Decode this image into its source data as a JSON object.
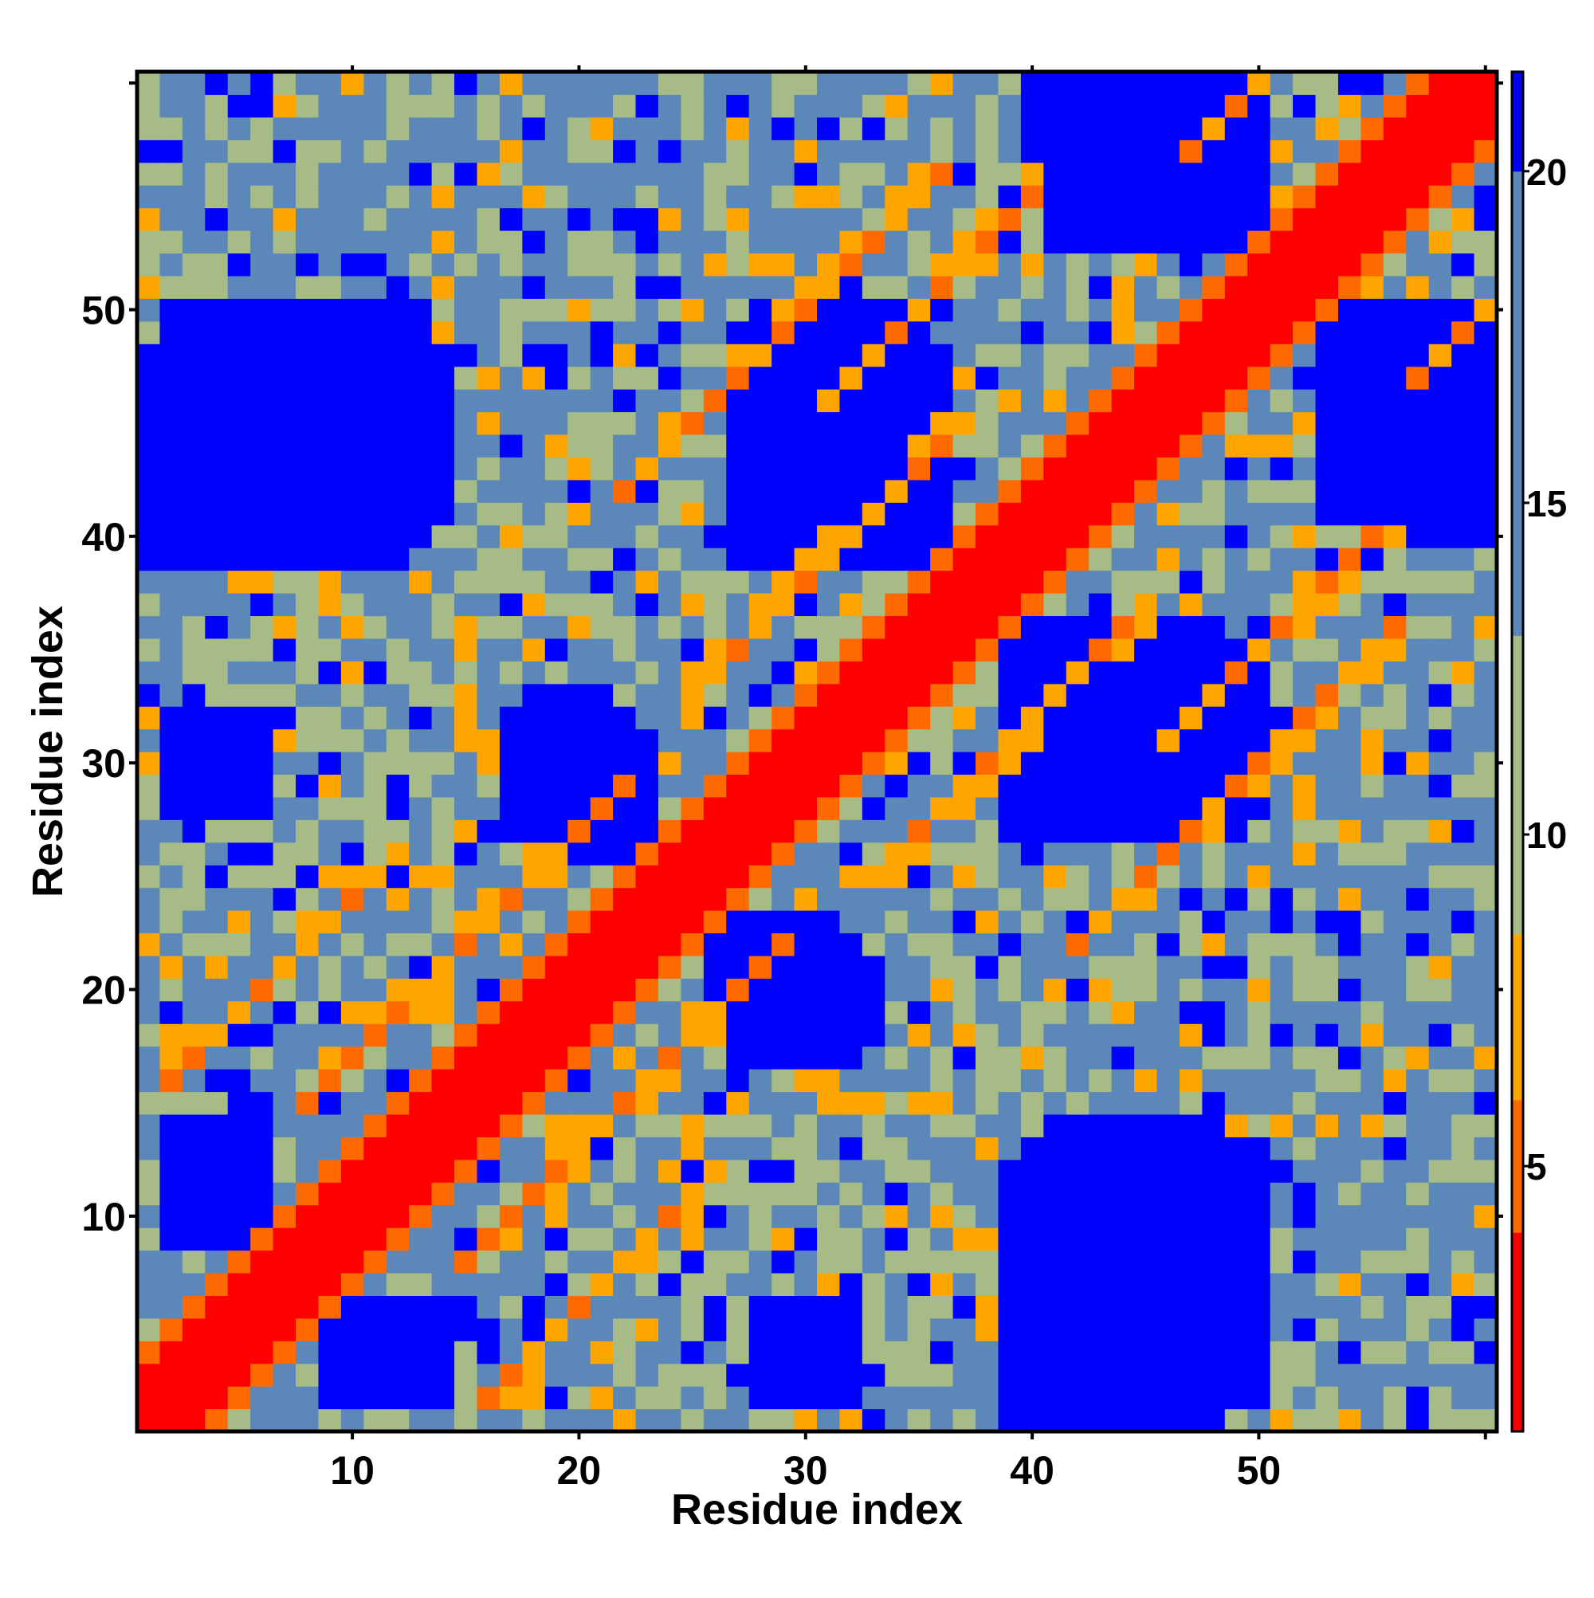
{
  "chart_data": {
    "type": "heatmap",
    "title": "",
    "xlabel": "Residue index",
    "ylabel": "Residue index",
    "x_range": [
      1,
      60
    ],
    "y_range": [
      1,
      60
    ],
    "x_ticks": [
      10,
      20,
      30,
      40,
      50
    ],
    "y_ticks": [
      10,
      20,
      30,
      40,
      50
    ],
    "colorbar": {
      "ticks": [
        5,
        10,
        15,
        20
      ],
      "range": [
        1,
        21.5
      ],
      "bands": [
        {
          "from": 1,
          "to": 4,
          "color": "#ff0000"
        },
        {
          "from": 4,
          "to": 6,
          "color": "#ff6a00"
        },
        {
          "from": 6,
          "to": 8.5,
          "color": "#ffa500"
        },
        {
          "from": 8.5,
          "to": 13,
          "color": "#a7bb86"
        },
        {
          "from": 13,
          "to": 20,
          "color": "#5b88b8"
        },
        {
          "from": 20,
          "to": 21.5,
          "color": "#0000ff"
        }
      ]
    },
    "symmetric": true,
    "diagonal_value": 1,
    "blue_regions": [
      {
        "x": [
          2,
          14
        ],
        "y": [
          41,
          48
        ]
      },
      {
        "x": [
          27,
          35
        ],
        "y": [
          39,
          49
        ]
      },
      {
        "x": [
          41,
          50
        ],
        "y": [
          53,
          60
        ]
      },
      {
        "x": [
          39,
          50
        ],
        "y": [
          27,
          36
        ]
      },
      {
        "x": [
          18,
          23
        ],
        "y": [
          26,
          32
        ]
      },
      {
        "x": [
          27,
          33
        ],
        "y": [
          17,
          21
        ]
      },
      {
        "x": [
          39,
          50
        ],
        "y": [
          1,
          13
        ]
      },
      {
        "x": [
          56,
          60
        ],
        "y": [
          40,
          50
        ]
      },
      {
        "x": [
          2,
          6
        ],
        "y": [
          9,
          14
        ]
      },
      {
        "x": [
          28,
          32
        ],
        "y": [
          2,
          6
        ]
      }
    ],
    "contact_bands": [
      {
        "diag_offset": 14,
        "x_range": [
          2,
          12
        ]
      },
      {
        "diag_offset": 7,
        "x_range": [
          8,
          14
        ]
      },
      {
        "diag_offset": 7,
        "x_range": [
          14,
          22
        ]
      },
      {
        "diag_offset": 8,
        "x_range": [
          25,
          36
        ]
      },
      {
        "diag_offset": 20,
        "x_range": [
          22,
          36
        ]
      },
      {
        "diag_offset": 15,
        "x_range": [
          31,
          40
        ]
      },
      {
        "diag_offset": 10,
        "x_range": [
          47,
          56
        ]
      }
    ]
  }
}
